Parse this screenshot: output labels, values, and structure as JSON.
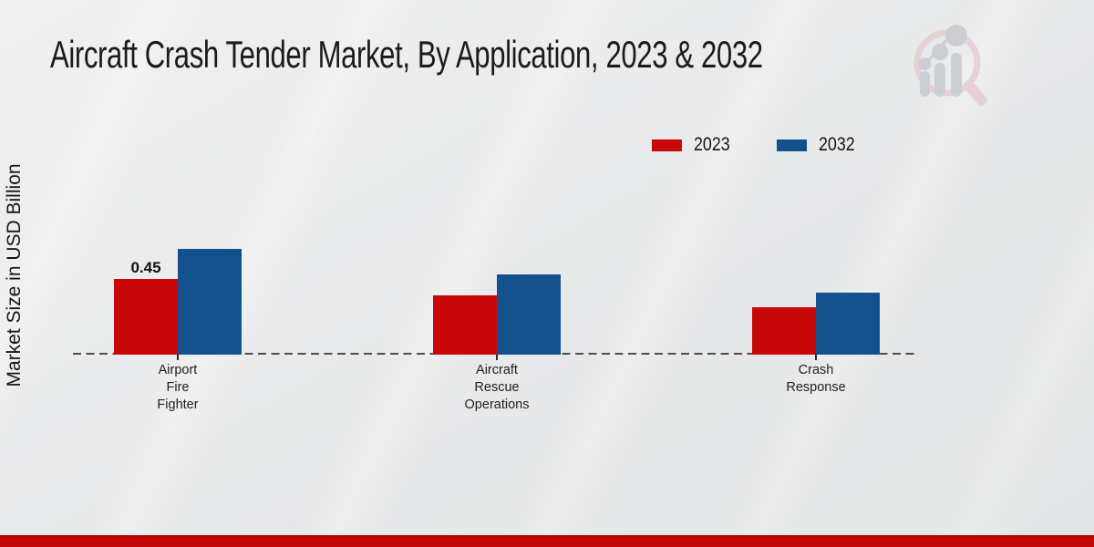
{
  "header": {
    "title": "Aircraft Crash Tender Market, By Application, 2023 & 2032"
  },
  "icons": {
    "logo_icon": "magnifier-bar-chart-watermark"
  },
  "colors": {
    "series_2023": "#c80808",
    "series_2032": "#14518c",
    "baseline": "#1a1a1a",
    "footer_band": "#c40707",
    "background": "#e8e9ea"
  },
  "chart_data": {
    "type": "bar",
    "title": "Aircraft Crash Tender Market, By Application, 2023 & 2032",
    "xlabel": "",
    "ylabel": "Market Size in USD Billion",
    "categories": [
      "Airport Fire Fighter",
      "Aircraft Rescue Operations",
      "Crash Response"
    ],
    "category_lines": [
      [
        "Airport",
        "Fire",
        "Fighter"
      ],
      [
        "Aircraft",
        "Rescue",
        "Operations"
      ],
      [
        "Crash",
        "Response"
      ]
    ],
    "series": [
      {
        "name": "2023",
        "color": "#c80808",
        "values": [
          0.45,
          0.35,
          0.28
        ]
      },
      {
        "name": "2032",
        "color": "#14518c",
        "values": [
          0.63,
          0.48,
          0.37
        ]
      }
    ],
    "data_labels": [
      {
        "series_index": 0,
        "category_index": 0,
        "text": "0.45"
      }
    ],
    "ylim": [
      0,
      0.7
    ],
    "grid": false,
    "legend_position": "top-right",
    "baseline_style": "dashed"
  }
}
